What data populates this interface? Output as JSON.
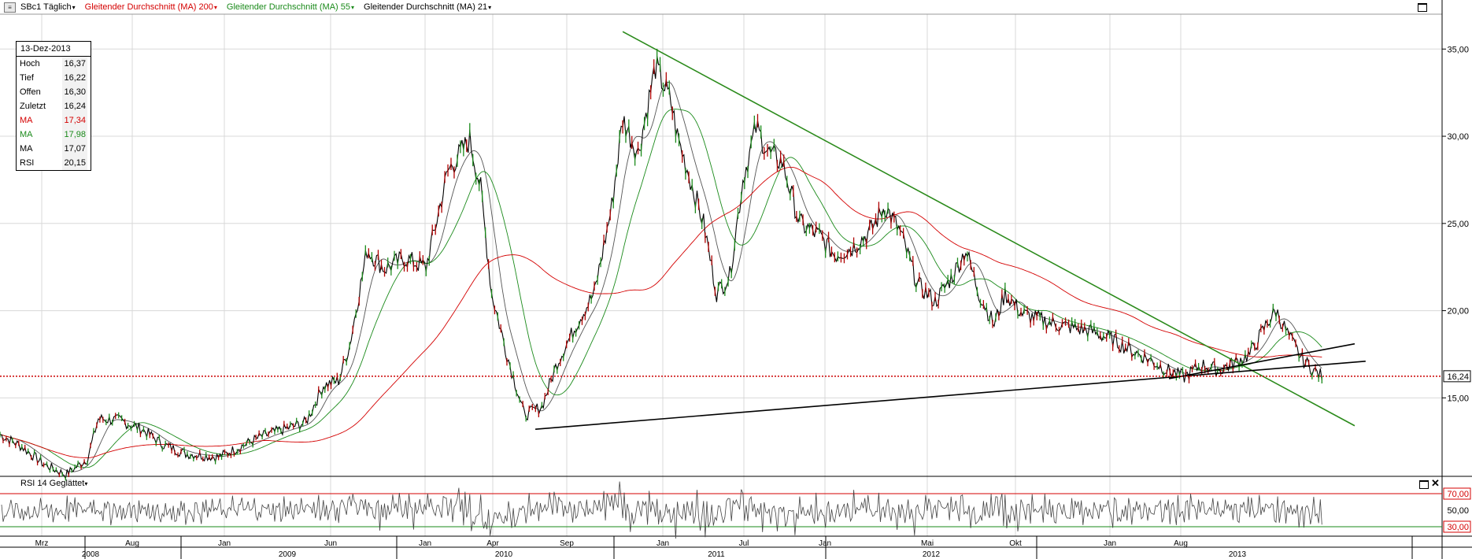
{
  "toolbar": {
    "symbol": "SBc1",
    "interval": "Täglich",
    "ma1_label": "Gleitender Durchschnitt (MA) 200",
    "ma2_label": "Gleitender Durchschnitt (MA) 55",
    "ma3_label": "Gleitender Durchschnitt (MA) 21"
  },
  "colors": {
    "ma200": "#d40000",
    "ma55": "#1a8a1a",
    "ma21": "#000000",
    "trend_down": "#2a8a1a",
    "trend_up": "#000000",
    "last_price_line": "#cc0000"
  },
  "info": {
    "date": "13-Dez-2013",
    "rows": [
      {
        "label": "Hoch",
        "value": "16,37"
      },
      {
        "label": "Tief",
        "value": "16,22"
      },
      {
        "label": "Offen",
        "value": "16,30"
      },
      {
        "label": "Zuletzt",
        "value": "16,24"
      },
      {
        "label": "MA",
        "value": "17,34"
      },
      {
        "label": "MA",
        "value": "17,98"
      },
      {
        "label": "MA",
        "value": "17,07"
      },
      {
        "label": "RSI",
        "value": "20,15"
      }
    ]
  },
  "rsi_panel": {
    "title": "RSI 14 Geglättet",
    "levels": [
      "70,00",
      "50,00",
      "30,00"
    ]
  },
  "chart_data": {
    "type": "line",
    "y_ticks": [
      "35,00",
      "30,00",
      "25,00",
      "20,00",
      "15,00"
    ],
    "ylim": [
      10.5,
      37
    ],
    "last_price_label": "16,24",
    "last_price": 16.24,
    "months": [
      "Mrz",
      "Aug",
      "Jan",
      "Jun",
      "Jan",
      "Apr",
      "Sep",
      "Jan",
      "Jul",
      "Jan",
      "Mai",
      "Okt",
      "Jan",
      "Aug"
    ],
    "years": [
      "2008",
      "2009",
      "2010",
      "2011",
      "2012",
      "2013"
    ],
    "series": [
      {
        "values": [
          [
            2007.9,
            12.9
          ],
          [
            2008.0,
            12.2
          ],
          [
            2008.1,
            11.2
          ],
          [
            2008.2,
            10.6
          ],
          [
            2008.3,
            11.5
          ],
          [
            2008.35,
            13.8
          ],
          [
            2008.45,
            13.7
          ],
          [
            2008.55,
            13.2
          ],
          [
            2008.65,
            12.3
          ],
          [
            2008.75,
            11.8
          ],
          [
            2008.9,
            11.6
          ],
          [
            2009.0,
            12.2
          ],
          [
            2009.1,
            12.8
          ],
          [
            2009.2,
            13.2
          ],
          [
            2009.3,
            13.6
          ],
          [
            2009.38,
            15.7
          ],
          [
            2009.45,
            16.0
          ],
          [
            2009.5,
            18.0
          ],
          [
            2009.58,
            23.5
          ],
          [
            2009.66,
            22.4
          ],
          [
            2009.75,
            23.0
          ],
          [
            2009.85,
            22.5
          ],
          [
            2009.95,
            28.0
          ],
          [
            2010.05,
            29.8
          ],
          [
            2010.1,
            27.0
          ],
          [
            2010.15,
            21.0
          ],
          [
            2010.22,
            17.5
          ],
          [
            2010.3,
            14.0
          ],
          [
            2010.38,
            14.5
          ],
          [
            2010.45,
            17.0
          ],
          [
            2010.55,
            19.5
          ],
          [
            2010.62,
            21.0
          ],
          [
            2010.7,
            26.0
          ],
          [
            2010.75,
            31.0
          ],
          [
            2010.82,
            29.0
          ],
          [
            2010.9,
            34.0
          ],
          [
            2010.97,
            32.0
          ],
          [
            2011.0,
            30.0
          ],
          [
            2011.06,
            27.5
          ],
          [
            2011.12,
            25.0
          ],
          [
            2011.18,
            21.0
          ],
          [
            2011.24,
            22.0
          ],
          [
            2011.3,
            27.5
          ],
          [
            2011.36,
            30.5
          ],
          [
            2011.42,
            29.0
          ],
          [
            2011.48,
            28.5
          ],
          [
            2011.56,
            25.0
          ],
          [
            2011.65,
            24.3
          ],
          [
            2011.72,
            23.2
          ],
          [
            2011.8,
            23.6
          ],
          [
            2011.88,
            24.5
          ],
          [
            2011.95,
            26.0
          ],
          [
            2012.02,
            24.5
          ],
          [
            2012.1,
            21.5
          ],
          [
            2012.18,
            20.5
          ],
          [
            2012.26,
            22.0
          ],
          [
            2012.32,
            23.5
          ],
          [
            2012.38,
            21.0
          ],
          [
            2012.45,
            19.2
          ],
          [
            2012.5,
            21.0
          ],
          [
            2012.58,
            19.8
          ],
          [
            2012.66,
            19.5
          ],
          [
            2012.74,
            19.2
          ],
          [
            2012.82,
            19.0
          ],
          [
            2012.9,
            18.8
          ],
          [
            2013.0,
            18.3
          ],
          [
            2013.08,
            17.7
          ],
          [
            2013.16,
            17.2
          ],
          [
            2013.24,
            16.6
          ],
          [
            2013.32,
            16.2
          ],
          [
            2013.4,
            16.9
          ],
          [
            2013.48,
            16.6
          ],
          [
            2013.55,
            17.0
          ],
          [
            2013.62,
            17.5
          ],
          [
            2013.7,
            19.3
          ],
          [
            2013.74,
            20.0
          ],
          [
            2013.8,
            18.5
          ],
          [
            2013.86,
            17.2
          ],
          [
            2013.92,
            16.5
          ],
          [
            2013.95,
            16.24
          ]
        ]
      }
    ],
    "trendlines": [
      {
        "from": [
          2010.75,
          36.0
        ],
        "to": [
          2014.1,
          13.4
        ]
      },
      {
        "from": [
          2010.35,
          13.2
        ],
        "to": [
          2014.15,
          17.1
        ]
      },
      {
        "from": [
          2013.25,
          16.1
        ],
        "to": [
          2014.1,
          18.1
        ]
      }
    ]
  }
}
